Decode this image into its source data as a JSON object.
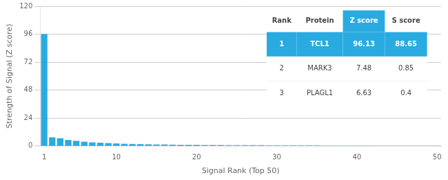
{
  "chart_data": {
    "type": "bar",
    "xlabel": "Signal Rank (Top 50)",
    "ylabel": "Strength of Signal (Z score)",
    "categories": [
      "1",
      null,
      null,
      null,
      null,
      null,
      null,
      null,
      null,
      "10",
      null,
      null,
      null,
      null,
      null,
      null,
      null,
      null,
      null,
      "20",
      null,
      null,
      null,
      null,
      null,
      null,
      null,
      null,
      null,
      "30",
      null,
      null,
      null,
      null,
      null,
      null,
      null,
      null,
      null,
      "40",
      null,
      null,
      null,
      null,
      null,
      null,
      null,
      null,
      null,
      "50"
    ],
    "values": [
      96.13,
      7.48,
      6.63,
      5.2,
      4.5,
      3.8,
      3.2,
      2.9,
      2.5,
      2.2,
      2.0,
      1.8,
      1.6,
      1.5,
      1.4,
      1.3,
      1.2,
      1.1,
      1.05,
      1.0,
      0.95,
      0.9,
      0.85,
      0.8,
      0.78,
      0.75,
      0.72,
      0.7,
      0.68,
      0.65,
      0.63,
      0.61,
      0.59,
      0.57,
      0.55,
      0.53,
      0.51,
      0.49,
      0.47,
      0.45,
      0.43,
      0.41,
      0.39,
      0.37,
      0.35,
      0.33,
      0.31,
      0.29,
      0.27,
      0.25
    ],
    "color": "#29abe2",
    "ylim": [
      0,
      120
    ],
    "yticks": [
      0,
      24,
      48,
      72,
      96,
      120
    ],
    "grid": true,
    "table": {
      "headers": [
        "Rank",
        "Protein",
        "Z score",
        "S score"
      ],
      "rows": [
        [
          "1",
          "TCL1",
          "96.13",
          "88.65"
        ],
        [
          "2",
          "MARK3",
          "7.48",
          "0.85"
        ],
        [
          "3",
          "PLAGL1",
          "6.63",
          "0.4"
        ]
      ]
    }
  }
}
